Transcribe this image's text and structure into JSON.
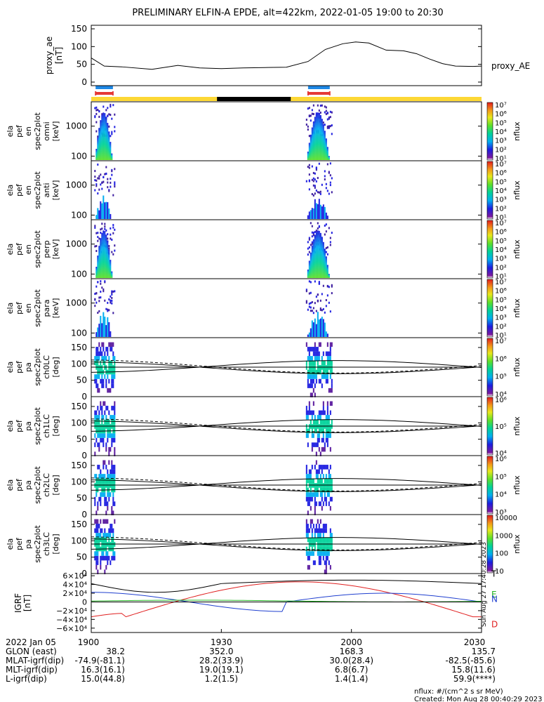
{
  "title": "PRELIMINARY ELFIN-A EPDE, alt=422km, 2022-01-05 19:00 to 20:30",
  "colors": {
    "bar_blue": "#1e88e5",
    "bar_red": "#e53935",
    "bar_yellow": "#fdd835",
    "bar_black": "#000000",
    "grf_total": "#000000",
    "grf_east": "#1f3fcf",
    "grf_north": "#22b422",
    "grf_down": "#e02020"
  },
  "chart_data": [
    {
      "type": "line",
      "id": "proxy_ae",
      "ylabel": [
        "proxy_ae",
        "[nT]"
      ],
      "series_label": "proxy_AE",
      "ylim": [
        -10,
        160
      ],
      "yticks": [
        0,
        50,
        100,
        150
      ],
      "x": [
        0,
        3,
        7,
        14,
        20,
        25,
        30,
        35,
        40,
        45,
        50,
        54,
        58,
        61,
        64,
        68,
        72,
        75,
        78,
        81,
        84,
        88,
        90
      ],
      "y": [
        68,
        45,
        43,
        36,
        47,
        40,
        38,
        40,
        41,
        42,
        58,
        92,
        108,
        113,
        110,
        90,
        88,
        80,
        65,
        52,
        45,
        44,
        45
      ]
    },
    {
      "type": "bar",
      "id": "orbit_bars",
      "blue_x": [
        [
          1,
          5
        ],
        [
          50,
          55
        ]
      ],
      "red_x": [
        [
          1,
          5
        ],
        [
          50,
          55
        ]
      ],
      "black_x": [
        [
          29,
          46
        ]
      ],
      "xlim": [
        0,
        90
      ]
    },
    {
      "type": "heatmap",
      "id": "omni",
      "ylabel": [
        "ela",
        "pef",
        "en",
        "spec2plot",
        "omni",
        "[keV]"
      ],
      "yscale": "log",
      "ylim": [
        70,
        6500
      ],
      "yticks": [
        100,
        1000
      ],
      "colorbar": {
        "label": "nflux",
        "scale": "log",
        "ticks": [
          "10¹",
          "10²",
          "10³",
          "10⁴",
          "10⁵",
          "10⁶",
          "10⁷"
        ]
      }
    },
    {
      "type": "heatmap",
      "id": "anti",
      "ylabel": [
        "ela",
        "pef",
        "en",
        "spec2plot",
        "anti",
        "[keV]"
      ],
      "yscale": "log",
      "ylim": [
        70,
        6500
      ],
      "yticks": [
        100,
        1000
      ],
      "colorbar": {
        "label": "nflux",
        "scale": "log",
        "ticks": [
          "10¹",
          "10²",
          "10³",
          "10⁴",
          "10⁵",
          "10⁶",
          "10⁷"
        ]
      }
    },
    {
      "type": "heatmap",
      "id": "perp",
      "ylabel": [
        "ela",
        "pef",
        "en",
        "spec2plot",
        "perp",
        "[keV]"
      ],
      "yscale": "log",
      "ylim": [
        70,
        6500
      ],
      "yticks": [
        100,
        1000
      ],
      "colorbar": {
        "label": "nflux",
        "scale": "log",
        "ticks": [
          "10¹",
          "10²",
          "10³",
          "10⁴",
          "10⁵",
          "10⁶",
          "10⁷"
        ]
      }
    },
    {
      "type": "heatmap",
      "id": "para",
      "ylabel": [
        "ela",
        "pef",
        "en",
        "spec2plot",
        "para",
        "[keV]"
      ],
      "yscale": "log",
      "ylim": [
        70,
        6500
      ],
      "yticks": [
        100,
        1000
      ],
      "colorbar": {
        "label": "nflux",
        "scale": "log",
        "ticks": [
          "10¹",
          "10²",
          "10³",
          "10⁴",
          "10⁵",
          "10⁶",
          "10⁷"
        ]
      }
    },
    {
      "type": "heatmap",
      "id": "ch0lc",
      "ylabel": [
        "ela",
        "pef",
        "pa",
        "spec2plot",
        "ch0LC",
        "[deg]"
      ],
      "ylim": [
        0,
        180
      ],
      "yticks": [
        0,
        50,
        100,
        150
      ],
      "colorbar": {
        "label": "nflux",
        "scale": "log",
        "ticks": [
          "10⁴",
          "10⁵",
          "10⁶",
          "10⁷"
        ]
      }
    },
    {
      "type": "heatmap",
      "id": "ch1lc",
      "ylabel": [
        "ela",
        "pef",
        "pa",
        "spec2plot",
        "ch1LC",
        "[deg]"
      ],
      "ylim": [
        0,
        180
      ],
      "yticks": [
        0,
        50,
        100,
        150
      ],
      "colorbar": {
        "label": "nflux",
        "scale": "log",
        "ticks": [
          "10⁴",
          "10⁵",
          "10⁶"
        ]
      }
    },
    {
      "type": "heatmap",
      "id": "ch2lc",
      "ylabel": [
        "ela",
        "pef",
        "pa",
        "spec2plot",
        "ch2LC",
        "[deg]"
      ],
      "ylim": [
        0,
        180
      ],
      "yticks": [
        0,
        50,
        100,
        150
      ],
      "colorbar": {
        "label": "nflux",
        "scale": "log",
        "ticks": [
          "10³",
          "10⁴",
          "10⁵",
          "10⁶"
        ]
      }
    },
    {
      "type": "heatmap",
      "id": "ch3lc",
      "ylabel": [
        "ela",
        "pef",
        "pa",
        "spec2plot",
        "ch3LC",
        "[deg]"
      ],
      "ylim": [
        0,
        180
      ],
      "yticks": [
        0,
        50,
        100,
        150
      ],
      "colorbar": {
        "label": "nflux",
        "scale": "linear",
        "ticks": [
          "10",
          "100",
          "1000",
          "10000"
        ]
      }
    },
    {
      "type": "line",
      "id": "igrf",
      "ylabel": [
        "IGRF",
        "[nT]"
      ],
      "ylim": [
        -70000,
        65000
      ],
      "ytick_labels": [
        "6×10⁴",
        "4×10⁴",
        "2×10⁴",
        "0",
        "−2×10⁴",
        "−4×10⁴",
        "−6×10⁴"
      ],
      "ytick_values": [
        60000,
        40000,
        20000,
        0,
        -20000,
        -40000,
        -60000
      ],
      "series_labels": {
        "total": "T",
        "east": "E",
        "north": "N",
        "down": "D"
      },
      "side_note": "Sun Aug 27 17:40:28 2023"
    }
  ],
  "time_axis": {
    "date_label": "2022 Jan 05",
    "tick_labels": [
      "1900",
      "1930",
      "2000",
      "2030"
    ]
  },
  "ephemeris": [
    {
      "label": "GLON (east)",
      "values": [
        "38.2",
        "352.0",
        "168.3",
        "135.7"
      ]
    },
    {
      "label": "MLAT-igrf(dip)",
      "values": [
        "-74.9(-81.1)",
        "28.2(33.9)",
        "30.0(28.4)",
        "-82.5(-85.6)"
      ]
    },
    {
      "label": "MLT-igrf(dip)",
      "values": [
        "16.3(16.1)",
        "19.0(19.1)",
        "6.8(6.7)",
        "15.8(11.6)"
      ]
    },
    {
      "label": "L-igrf(dip)",
      "values": [
        "15.0(44.8)",
        "1.2(1.5)",
        "1.4(1.4)",
        "59.9(****)"
      ]
    }
  ],
  "footer": {
    "units": "nflux: #/(cm^2 s sr MeV)",
    "created": "Created: Mon Aug 28 00:40:29 2023"
  }
}
